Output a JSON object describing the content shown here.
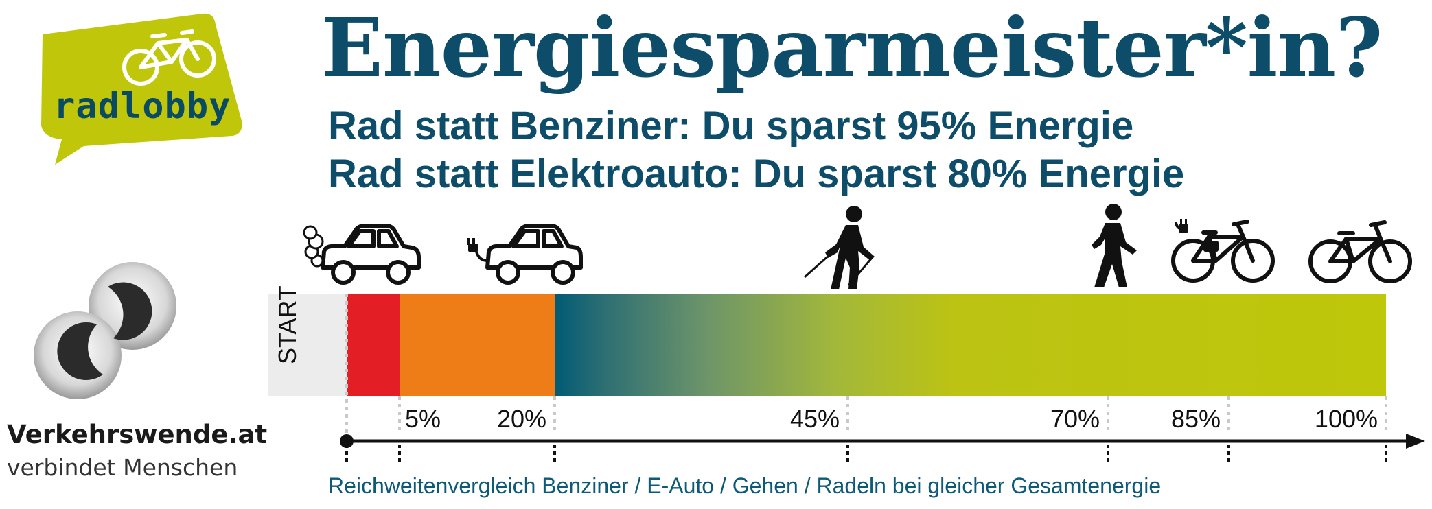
{
  "header": {
    "title": "Energiesparmeister*in?",
    "subtitle_1": "Rad statt Benziner: Du sparst 95% Energie",
    "subtitle_2": "Rad statt Elektroauto: Du sparst 80% Energie"
  },
  "logo_radlobby": {
    "text": "radlobby",
    "color": "#c0c70a",
    "icon": "bicycle-icon"
  },
  "logo_verkehrswende": {
    "name": "Verkehrswende.at",
    "tagline": "verbindet Menschen"
  },
  "bar": {
    "start_label": "START",
    "colors": {
      "benziner": "#e31e24",
      "e_auto": "#ee7d18",
      "gehen_start": "#005b74",
      "rad": "#bfc70a"
    },
    "segments_percent": {
      "benziner": 5,
      "e_auto": 20,
      "end": 100
    }
  },
  "markers": [
    {
      "label": "5%",
      "value": 5
    },
    {
      "label": "20%",
      "value": 20
    },
    {
      "label": "45%",
      "value": 45
    },
    {
      "label": "70%",
      "value": 70
    },
    {
      "label": "85%",
      "value": 85
    },
    {
      "label": "100%",
      "value": 100
    }
  ],
  "icons": [
    "benzin-car-icon",
    "electric-car-icon",
    "nordic-walker-icon",
    "pedestrian-icon",
    "e-bike-icon",
    "bicycle-icon"
  ],
  "caption": "Reichweitenvergleich Benziner / E-Auto / Gehen / Radeln bei gleicher Gesamtenergie"
}
